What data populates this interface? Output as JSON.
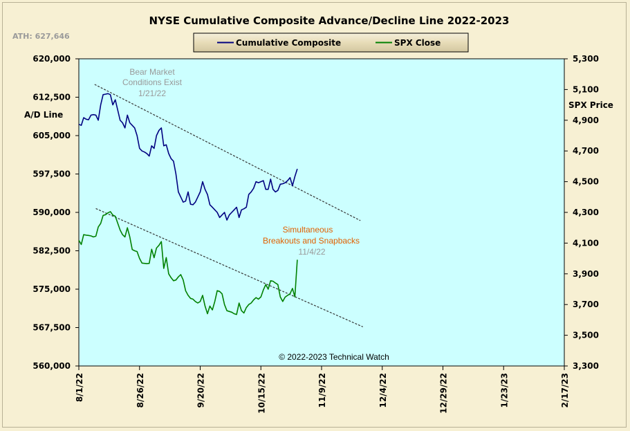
{
  "chart_data": {
    "type": "line",
    "title": "NYSE Cumulative Composite Advance/Decline Line 2022-2023",
    "ath_label": "ATH: 627,646",
    "left_axis_label": "A/D Line",
    "right_axis_label": "SPX Price",
    "copyright": "© 2022-2023 Technical Watch",
    "x_tick_labels": [
      "8/1/22",
      "8/26/22",
      "9/20/22",
      "10/15/22",
      "11/9/22",
      "12/4/22",
      "12/29/22",
      "1/23/23",
      "2/17/23"
    ],
    "y_left": {
      "ylim": [
        560000,
        620000
      ],
      "ticks": [
        "560,000",
        "567,500",
        "575,000",
        "582,500",
        "590,000",
        "597,500",
        "605,000",
        "612,500",
        "620,000"
      ]
    },
    "y_right": {
      "ylim": [
        3300,
        5300
      ],
      "ticks": [
        "3,300",
        "3,500",
        "3,700",
        "3,900",
        "4,100",
        "4,300",
        "4,500",
        "4,700",
        "4,900",
        "5,100",
        "5,300"
      ]
    },
    "colors": {
      "plot_bg": "#ccffff",
      "ad_line": "#000080",
      "spx_line": "#008000",
      "trend": "#333333",
      "annotation_gray": "#999999",
      "annotation_orange": "#e06000"
    },
    "series": [
      {
        "name": "Cumulative Composite",
        "axis": "left",
        "x_days": [
          0,
          1,
          2,
          3,
          4,
          5,
          6,
          7,
          8,
          9,
          10,
          11,
          12,
          13,
          14,
          15,
          16,
          17,
          18,
          19,
          20,
          21,
          22,
          23,
          24,
          25,
          26,
          27,
          28,
          29,
          30,
          31,
          32,
          33,
          34,
          35,
          36,
          37,
          38,
          39,
          40,
          41,
          42,
          43,
          44,
          45,
          46,
          47,
          48,
          49,
          50,
          51,
          52,
          53,
          54,
          55,
          56,
          57,
          58,
          59,
          60,
          61,
          62,
          63,
          64,
          65,
          66,
          67,
          68,
          69,
          70,
          71,
          72,
          73,
          74,
          75,
          76,
          77,
          78,
          79,
          80,
          81,
          82,
          83,
          84,
          85,
          86,
          87,
          88,
          89,
          90,
          91,
          92,
          93,
          94,
          95,
          96,
          97,
          98,
          99,
          100,
          101,
          102,
          103,
          104,
          105,
          106,
          107
        ],
        "values": [
          607200,
          607000,
          608500,
          608200,
          608100,
          609000,
          609100,
          609000,
          608000,
          611000,
          613000,
          613100,
          613200,
          613000,
          611000,
          612000,
          610000,
          608000,
          607500,
          606500,
          609000,
          607500,
          607000,
          606500,
          605000,
          602500,
          602000,
          601800,
          601500,
          601000,
          603000,
          602500,
          605000,
          606000,
          606500,
          603000,
          603200,
          601500,
          600500,
          600000,
          597500,
          594000,
          593000,
          592000,
          592200,
          594000,
          591600,
          591500,
          592000,
          593000,
          594000,
          596000,
          594500,
          593500,
          591500,
          591000,
          590500,
          590000,
          589000,
          589500,
          590000,
          588500,
          589500,
          590000,
          590500,
          591000,
          589000,
          590500,
          590700,
          591000,
          593500,
          594000,
          594700,
          596000,
          595800,
          596000,
          596200,
          594500,
          594500,
          596500,
          594500,
          594000,
          594300,
          595500,
          595600,
          595800,
          596200,
          596800,
          595200,
          597000,
          598500,
          null,
          null,
          null,
          null,
          null,
          null,
          null,
          null,
          null,
          null,
          null,
          null,
          null,
          null,
          null,
          null,
          null
        ]
      },
      {
        "name": "SPX Close",
        "axis": "right",
        "x_days": [
          0,
          1,
          2,
          3,
          4,
          5,
          6,
          7,
          8,
          9,
          10,
          11,
          12,
          13,
          14,
          15,
          16,
          17,
          18,
          19,
          20,
          21,
          22,
          23,
          24,
          25,
          26,
          27,
          28,
          29,
          30,
          31,
          32,
          33,
          34,
          35,
          36,
          37,
          38,
          39,
          40,
          41,
          42,
          43,
          44,
          45,
          46,
          47,
          48,
          49,
          50,
          51,
          52,
          53,
          54,
          55,
          56,
          57,
          58,
          59,
          60,
          61,
          62,
          63,
          64,
          65,
          66,
          67,
          68,
          69,
          70,
          71,
          72,
          73,
          74,
          75,
          76,
          77,
          78,
          79,
          80,
          81,
          82,
          83,
          84,
          85,
          86,
          87,
          88,
          89,
          90
        ],
        "values": [
          4118,
          4091,
          4155,
          4152,
          4150,
          4147,
          4140,
          4145,
          4205,
          4228,
          4280,
          4285,
          4297,
          4305,
          4283,
          4275,
          4230,
          4185,
          4155,
          4140,
          4200,
          4140,
          4058,
          4050,
          4045,
          4000,
          3970,
          3968,
          3966,
          3968,
          4060,
          4005,
          4068,
          4085,
          4110,
          3935,
          4006,
          3900,
          3875,
          3855,
          3860,
          3880,
          3895,
          3860,
          3790,
          3760,
          3740,
          3735,
          3720,
          3710,
          3720,
          3760,
          3690,
          3640,
          3690,
          3665,
          3720,
          3790,
          3785,
          3770,
          3700,
          3660,
          3655,
          3650,
          3640,
          3635,
          3710,
          3660,
          3645,
          3680,
          3700,
          3710,
          3730,
          3745,
          3735,
          3750,
          3795,
          3830,
          3800,
          3855,
          3852,
          3840,
          3830,
          3750,
          3720,
          3748,
          3760,
          3770,
          3805,
          3750,
          3992
        ]
      }
    ],
    "trendlines": [
      {
        "axis": "left",
        "from": [
          6.5,
          615000
        ],
        "to": [
          90,
          595000
        ],
        "extended_to": [
          116,
          588400
        ]
      },
      {
        "axis": "right",
        "from": [
          7,
          4325
        ],
        "to": [
          88,
          3720
        ],
        "extended_to": [
          117,
          3555
        ]
      }
    ],
    "annotations": [
      {
        "lines": [
          "Bear Market",
          "Conditions  Exist",
          "1/21/22"
        ],
        "colors": [
          "gray",
          "gray",
          "gray"
        ]
      },
      {
        "lines": [
          "Simultaneous",
          "Breakouts and Snapbacks",
          "11/4/22"
        ],
        "colors": [
          "orange",
          "orange",
          "gray"
        ]
      }
    ],
    "grid": false,
    "legend_placement": "top-center"
  }
}
